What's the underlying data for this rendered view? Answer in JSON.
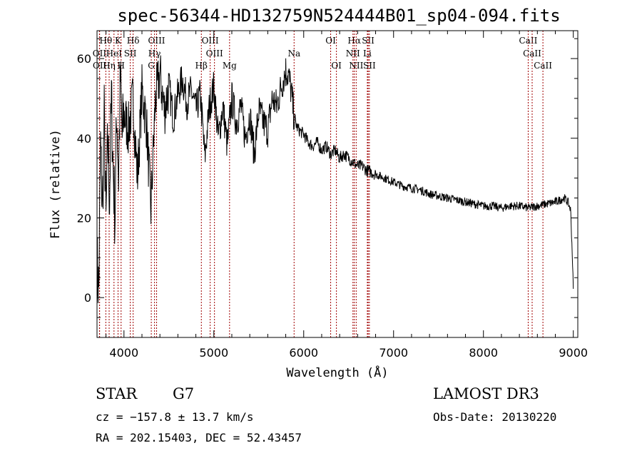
{
  "title": "spec-56344-HD132759N524444B01_sp04-094.fits",
  "info": {
    "class": "STAR",
    "subclass": "G7",
    "survey": "LAMOST DR3",
    "cz": "cz = −157.8 ± 13.7 km/s",
    "obs_date": "Obs-Date: 20130220",
    "coords": "RA = 202.15403, DEC =  52.43457"
  },
  "colors": {
    "line": "#000000",
    "marker": "#a00000",
    "axis": "#000000"
  },
  "chart_data": {
    "type": "line",
    "title": "spec-56344-HD132759N524444B01_sp04-094.fits",
    "xlabel": "Wavelength (Å)",
    "ylabel": "Flux (relative)",
    "xlim": [
      3700,
      9050
    ],
    "ylim": [
      -10,
      67
    ],
    "xticks": [
      4000,
      5000,
      6000,
      7000,
      8000,
      9000
    ],
    "yticks": [
      0,
      20,
      40,
      60
    ],
    "series": [
      {
        "name": "flux",
        "x": [
          3700,
          3720,
          3740,
          3760,
          3780,
          3800,
          3820,
          3840,
          3860,
          3880,
          3900,
          3920,
          3940,
          3960,
          3980,
          4000,
          4050,
          4100,
          4150,
          4200,
          4250,
          4300,
          4350,
          4400,
          4450,
          4500,
          4550,
          4600,
          4650,
          4700,
          4750,
          4800,
          4850,
          4900,
          4950,
          5000,
          5050,
          5100,
          5150,
          5200,
          5250,
          5300,
          5350,
          5400,
          5450,
          5500,
          5550,
          5600,
          5650,
          5700,
          5750,
          5800,
          5830,
          5860,
          5890,
          5920,
          5950,
          6000,
          6050,
          6100,
          6150,
          6200,
          6250,
          6300,
          6350,
          6400,
          6450,
          6500,
          6550,
          6600,
          6650,
          6700,
          6750,
          6800,
          6850,
          6900,
          6950,
          7000,
          7100,
          7200,
          7300,
          7400,
          7500,
          7600,
          7700,
          7800,
          7900,
          8000,
          8100,
          8200,
          8300,
          8400,
          8500,
          8600,
          8700,
          8800,
          8900,
          8940,
          8970,
          8990,
          9000
        ],
        "y": [
          8,
          2,
          38,
          22,
          45,
          18,
          40,
          25,
          50,
          32,
          20,
          48,
          30,
          55,
          40,
          46,
          42,
          50,
          30,
          52,
          44,
          22,
          50,
          56,
          47,
          53,
          45,
          51,
          55,
          49,
          52,
          47,
          51,
          35,
          48,
          53,
          40,
          48,
          38,
          50,
          44,
          48,
          40,
          46,
          36,
          47,
          44,
          42,
          50,
          48,
          53,
          57,
          56,
          52,
          46,
          43,
          42,
          41,
          39,
          38,
          39,
          37,
          38,
          36,
          37,
          35,
          36,
          35,
          34,
          33,
          33,
          32,
          31.5,
          31,
          30.5,
          30,
          29.5,
          29,
          28,
          27.5,
          27,
          26,
          25.5,
          25,
          24.5,
          24,
          23.5,
          23,
          23,
          22.5,
          23,
          23,
          22.5,
          23,
          23.5,
          24,
          25,
          24,
          22,
          10,
          2
        ]
      }
    ],
    "line_markers": [
      {
        "label": "Hθ",
        "wavelength": 3798,
        "row": 0
      },
      {
        "label": "K",
        "wavelength": 3934,
        "row": 0
      },
      {
        "label": "Hδ",
        "wavelength": 4102,
        "row": 0
      },
      {
        "label": "OIII",
        "wavelength": 4363,
        "row": 0
      },
      {
        "label": "OIII",
        "wavelength": 4959,
        "row": 0
      },
      {
        "label": "OI",
        "wavelength": 6300,
        "row": 0
      },
      {
        "label": "Hα",
        "wavelength": 6563,
        "row": 0
      },
      {
        "label": "SII",
        "wavelength": 6717,
        "row": 0
      },
      {
        "label": "CaII",
        "wavelength": 8498,
        "row": 0
      },
      {
        "label": "OII",
        "wavelength": 3727,
        "row": 1
      },
      {
        "label": "HeI",
        "wavelength": 3889,
        "row": 1
      },
      {
        "label": "SII",
        "wavelength": 4070,
        "row": 1
      },
      {
        "label": "Hγ",
        "wavelength": 4340,
        "row": 1
      },
      {
        "label": "OIII",
        "wavelength": 5007,
        "row": 1
      },
      {
        "label": "Na",
        "wavelength": 5893,
        "row": 1
      },
      {
        "label": "NII",
        "wavelength": 6548,
        "row": 1
      },
      {
        "label": "Li",
        "wavelength": 6708,
        "row": 1
      },
      {
        "label": "CaII",
        "wavelength": 8542,
        "row": 1
      },
      {
        "label": "OII",
        "wavelength": 3729,
        "row": 2
      },
      {
        "label": "Hη",
        "wavelength": 3835,
        "row": 2
      },
      {
        "label": "H",
        "wavelength": 3968,
        "row": 2
      },
      {
        "label": "G",
        "wavelength": 4304,
        "row": 2
      },
      {
        "label": "Hβ",
        "wavelength": 4861,
        "row": 2
      },
      {
        "label": "Mg",
        "wavelength": 5175,
        "row": 2
      },
      {
        "label": "OI",
        "wavelength": 6364,
        "row": 2
      },
      {
        "label": "NII",
        "wavelength": 6584,
        "row": 2
      },
      {
        "label": "SII",
        "wavelength": 6731,
        "row": 2
      },
      {
        "label": "CaII",
        "wavelength": 8662,
        "row": 2
      }
    ]
  }
}
